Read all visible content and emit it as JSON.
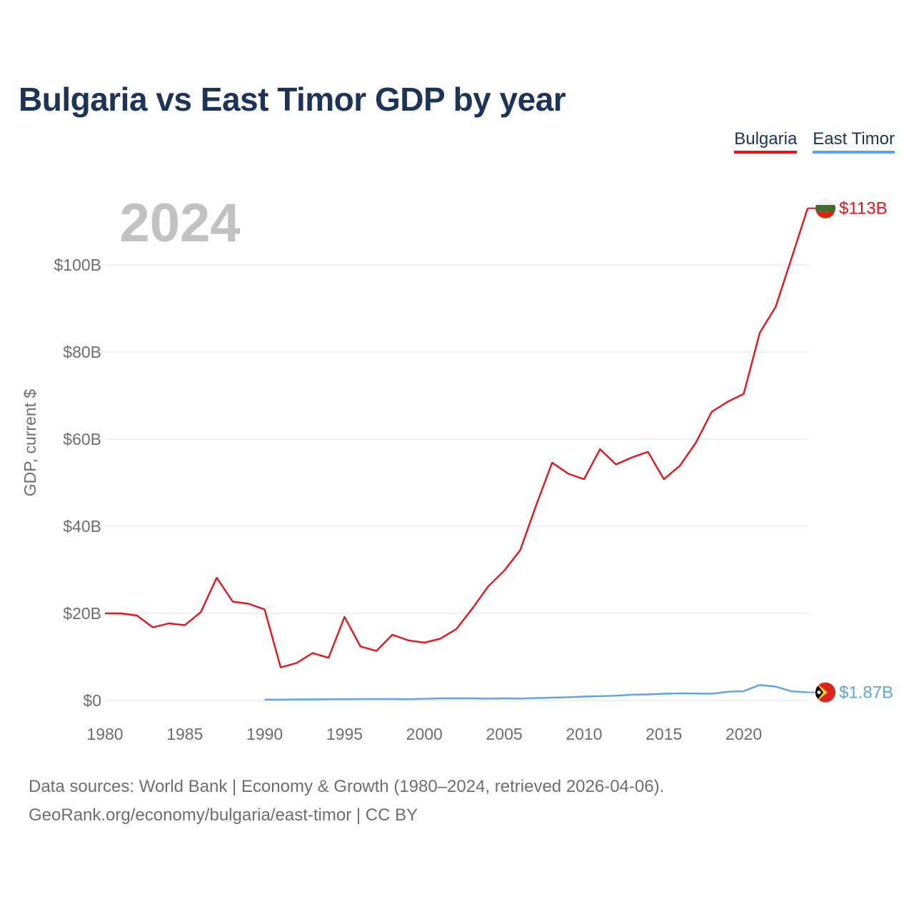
{
  "title": "Bulgaria vs East Timor GDP by year",
  "legend": [
    {
      "label": "Bulgaria",
      "color": "#e8141b"
    },
    {
      "label": "East Timor",
      "color": "#5ba4e8"
    }
  ],
  "year_overlay": "2024",
  "footer": {
    "line1": "Data sources: World Bank | Economy & Growth (1980–2024, retrieved 2026-04-06).",
    "line2": "GeoRank.org/economy/bulgaria/east-timor | CC BY"
  },
  "chart_data": {
    "type": "line",
    "title": "Bulgaria vs East Timor GDP by year",
    "xlabel": "",
    "ylabel": "GDP, current $",
    "xlim": [
      1980,
      2024
    ],
    "ylim": [
      0,
      115
    ],
    "y_unit": "billions USD",
    "x_ticks": [
      1980,
      1985,
      1990,
      1995,
      2000,
      2005,
      2010,
      2015,
      2020
    ],
    "y_ticks": [
      {
        "value": 0,
        "label": "$0"
      },
      {
        "value": 20,
        "label": "$20B"
      },
      {
        "value": 40,
        "label": "$40B"
      },
      {
        "value": 60,
        "label": "$60B"
      },
      {
        "value": 80,
        "label": "$80B"
      },
      {
        "value": 100,
        "label": "$100B"
      }
    ],
    "grid": true,
    "series": [
      {
        "name": "Bulgaria",
        "color": "#e8141b",
        "end_label": "$113B",
        "x": [
          1980,
          1981,
          1982,
          1983,
          1984,
          1985,
          1986,
          1987,
          1988,
          1989,
          1990,
          1991,
          1992,
          1993,
          1994,
          1995,
          1996,
          1997,
          1998,
          1999,
          2000,
          2001,
          2002,
          2003,
          2004,
          2005,
          2006,
          2007,
          2008,
          2009,
          2010,
          2011,
          2012,
          2013,
          2014,
          2015,
          2016,
          2017,
          2018,
          2019,
          2020,
          2021,
          2022,
          2023,
          2024
        ],
        "values": [
          20.0,
          20.0,
          19.5,
          16.8,
          17.7,
          17.3,
          20.3,
          28.2,
          22.7,
          22.2,
          20.9,
          7.6,
          8.6,
          10.9,
          9.8,
          19.2,
          12.4,
          11.4,
          15.1,
          13.8,
          13.3,
          14.2,
          16.4,
          21.1,
          26.2,
          29.8,
          34.5,
          44.8,
          54.6,
          52.1,
          50.8,
          57.7,
          54.2,
          55.8,
          57.1,
          50.8,
          53.9,
          59.2,
          66.3,
          68.6,
          70.4,
          84.4,
          90.4,
          101.6,
          113.0
        ]
      },
      {
        "name": "East Timor",
        "color": "#5ba4e8",
        "end_label": "$1.87B",
        "x": [
          1990,
          1991,
          1992,
          1993,
          1994,
          1995,
          1996,
          1997,
          1998,
          1999,
          2000,
          2001,
          2002,
          2003,
          2004,
          2005,
          2006,
          2007,
          2008,
          2009,
          2010,
          2011,
          2012,
          2013,
          2014,
          2015,
          2016,
          2017,
          2018,
          2019,
          2020,
          2021,
          2022,
          2023,
          2024
        ],
        "values": [
          0.2,
          0.2,
          0.25,
          0.25,
          0.3,
          0.3,
          0.35,
          0.35,
          0.35,
          0.3,
          0.4,
          0.5,
          0.5,
          0.5,
          0.45,
          0.5,
          0.45,
          0.55,
          0.65,
          0.75,
          0.9,
          1.0,
          1.1,
          1.35,
          1.4,
          1.55,
          1.65,
          1.6,
          1.55,
          2.0,
          2.15,
          3.55,
          3.2,
          2.1,
          1.87
        ]
      }
    ]
  }
}
